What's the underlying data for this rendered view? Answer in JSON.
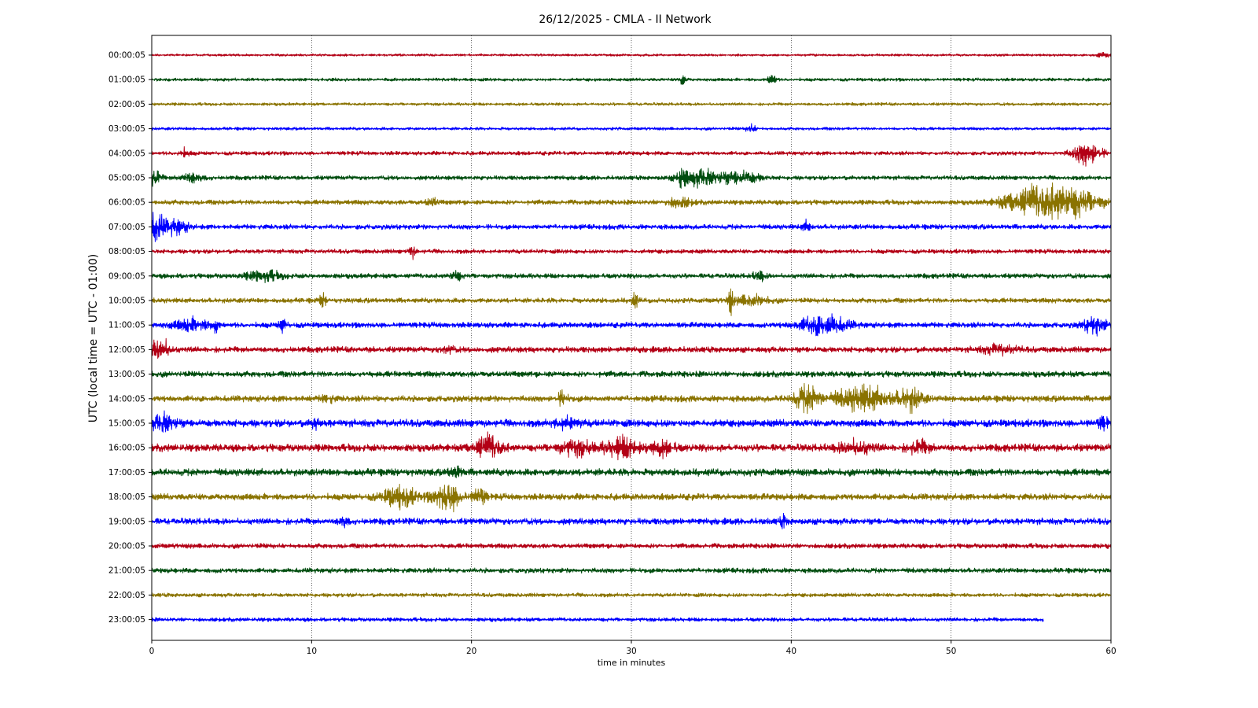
{
  "chart_data": {
    "type": "line",
    "title": "26/12/2025 - CMLA - II Network",
    "xlabel": "time in minutes",
    "ylabel": "UTC (local time = UTC - 01:00)",
    "xlim": [
      0,
      60
    ],
    "x_ticks": [
      "0",
      "10",
      "20",
      "30",
      "40",
      "50",
      "60"
    ],
    "grid": "vertical dotted",
    "color_cycle": [
      "#b30015",
      "#004d0f",
      "#8a7300",
      "#0000ff"
    ],
    "series": [
      {
        "label": "00:00:05",
        "end_minute": 60,
        "amplitude": 0.12,
        "bursts": [
          [
            59.5,
            0.5,
            0.3
          ]
        ]
      },
      {
        "label": "01:00:05",
        "end_minute": 60,
        "amplitude": 0.16,
        "bursts": [
          [
            33.2,
            0.3,
            0.6
          ],
          [
            38.8,
            0.3,
            0.9
          ]
        ]
      },
      {
        "label": "02:00:05",
        "end_minute": 60,
        "amplitude": 0.15,
        "bursts": []
      },
      {
        "label": "03:00:05",
        "end_minute": 60,
        "amplitude": 0.15,
        "bursts": [
          [
            37.5,
            0.4,
            0.4
          ]
        ]
      },
      {
        "label": "04:00:05",
        "end_minute": 60,
        "amplitude": 0.2,
        "bursts": [
          [
            2,
            0.5,
            0.4
          ],
          [
            58.5,
            1.2,
            1.2
          ]
        ]
      },
      {
        "label": "05:00:05",
        "end_minute": 60,
        "amplitude": 0.22,
        "bursts": [
          [
            0.2,
            0.5,
            0.8
          ],
          [
            2.5,
            1,
            0.5
          ],
          [
            33.2,
            0.3,
            1.6
          ],
          [
            34.5,
            2,
            0.8
          ],
          [
            37,
            1.5,
            0.6
          ]
        ]
      },
      {
        "label": "06:00:05",
        "end_minute": 60,
        "amplitude": 0.25,
        "bursts": [
          [
            17.5,
            0.5,
            0.4
          ],
          [
            33,
            1,
            0.5
          ],
          [
            54.5,
            2,
            1.0
          ],
          [
            57,
            3,
            1.8
          ]
        ]
      },
      {
        "label": "07:00:05",
        "end_minute": 60,
        "amplitude": 0.25,
        "bursts": [
          [
            0.3,
            0.6,
            1.6
          ],
          [
            1.5,
            1,
            0.8
          ],
          [
            41,
            0.4,
            0.5
          ]
        ]
      },
      {
        "label": "08:00:05",
        "end_minute": 60,
        "amplitude": 0.22,
        "bursts": [
          [
            16.3,
            0.3,
            0.6
          ]
        ]
      },
      {
        "label": "09:00:05",
        "end_minute": 60,
        "amplitude": 0.25,
        "bursts": [
          [
            7,
            1.5,
            0.5
          ],
          [
            19,
            0.5,
            0.5
          ],
          [
            38,
            0.5,
            0.5
          ]
        ]
      },
      {
        "label": "10:00:05",
        "end_minute": 60,
        "amplitude": 0.25,
        "bursts": [
          [
            10.7,
            0.3,
            0.6
          ],
          [
            30.2,
            0.3,
            0.8
          ],
          [
            36.2,
            0.2,
            1.4
          ],
          [
            37.5,
            1.5,
            0.5
          ]
        ]
      },
      {
        "label": "11:00:05",
        "end_minute": 60,
        "amplitude": 0.28,
        "bursts": [
          [
            2.5,
            1.5,
            0.6
          ],
          [
            4,
            0.2,
            1.0
          ],
          [
            8.2,
            0.3,
            0.8
          ],
          [
            42,
            2,
            1.1
          ],
          [
            59,
            1,
            0.8
          ]
        ]
      },
      {
        "label": "12:00:05",
        "end_minute": 60,
        "amplitude": 0.3,
        "bursts": [
          [
            0.5,
            0.8,
            1.2
          ],
          [
            18.5,
            0.5,
            0.4
          ],
          [
            53,
            1.5,
            0.4
          ]
        ]
      },
      {
        "label": "13:00:05",
        "end_minute": 60,
        "amplitude": 0.3,
        "bursts": []
      },
      {
        "label": "14:00:05",
        "end_minute": 60,
        "amplitude": 0.32,
        "bursts": [
          [
            11,
            0.5,
            0.4
          ],
          [
            25.7,
            0.4,
            0.7
          ],
          [
            41,
            1.2,
            1.2
          ],
          [
            44.5,
            2.5,
            1.2
          ],
          [
            47.5,
            1,
            1.1
          ]
        ]
      },
      {
        "label": "15:00:05",
        "end_minute": 60,
        "amplitude": 0.38,
        "bursts": [
          [
            0.8,
            1,
            0.9
          ],
          [
            10.2,
            0.3,
            0.6
          ],
          [
            26,
            1,
            0.6
          ],
          [
            59.5,
            0.5,
            0.5
          ]
        ]
      },
      {
        "label": "16:00:05",
        "end_minute": 60,
        "amplitude": 0.38,
        "bursts": [
          [
            21,
            1.2,
            1.2
          ],
          [
            26.5,
            1.5,
            0.7
          ],
          [
            29.5,
            1.5,
            1.0
          ],
          [
            32,
            1,
            0.7
          ],
          [
            44,
            1.5,
            0.6
          ],
          [
            48,
            1,
            0.6
          ]
        ]
      },
      {
        "label": "17:00:05",
        "end_minute": 60,
        "amplitude": 0.36,
        "bursts": [
          [
            19,
            0.5,
            0.6
          ]
        ]
      },
      {
        "label": "18:00:05",
        "end_minute": 60,
        "amplitude": 0.33,
        "bursts": [
          [
            15.5,
            1.5,
            1.0
          ],
          [
            18.5,
            1.2,
            1.4
          ],
          [
            20.5,
            0.5,
            1.0
          ]
        ]
      },
      {
        "label": "19:00:05",
        "end_minute": 60,
        "amplitude": 0.32,
        "bursts": [
          [
            12,
            0.4,
            0.6
          ],
          [
            39.5,
            0.3,
            0.5
          ]
        ]
      },
      {
        "label": "20:00:05",
        "end_minute": 60,
        "amplitude": 0.25,
        "bursts": []
      },
      {
        "label": "21:00:05",
        "end_minute": 60,
        "amplitude": 0.25,
        "bursts": []
      },
      {
        "label": "22:00:05",
        "end_minute": 60,
        "amplitude": 0.2,
        "bursts": []
      },
      {
        "label": "23:00:05",
        "end_minute": 55.8,
        "amplitude": 0.2,
        "bursts": []
      }
    ]
  }
}
